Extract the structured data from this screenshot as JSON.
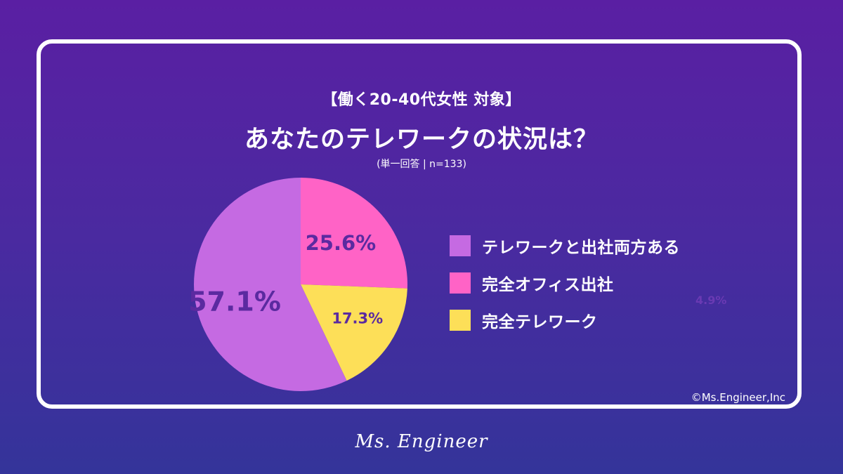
{
  "header": {
    "subtitle": "【働く20-40代女性 対象】",
    "title": "あなたのテレワークの状況は？",
    "note": "(単一回答 | n=133)"
  },
  "chart_data": {
    "type": "pie",
    "title": "あなたのテレワークの状況は？",
    "labels": [
      "テレワークと出社両方ある",
      "完全オフィス出社",
      "完全テレワーク"
    ],
    "values": [
      57.1,
      25.6,
      17.3
    ],
    "value_labels": [
      "57.1%",
      "25.6%",
      "17.3%"
    ],
    "colors": [
      "#c56ae2",
      "#ff63c6",
      "#fddf58"
    ],
    "label_color": "#5b2aa0",
    "legend": "right"
  },
  "legend_items": [
    {
      "label": "テレワークと出社両方ある",
      "color": "#c56ae2"
    },
    {
      "label": "完全オフィス出社",
      "color": "#ff63c6"
    },
    {
      "label": "完全テレワーク",
      "color": "#fddf58"
    }
  ],
  "ghost_label": "4.9%",
  "copyright": "©Ms.Engineer,Inc",
  "logo": "Ms. Engineer"
}
